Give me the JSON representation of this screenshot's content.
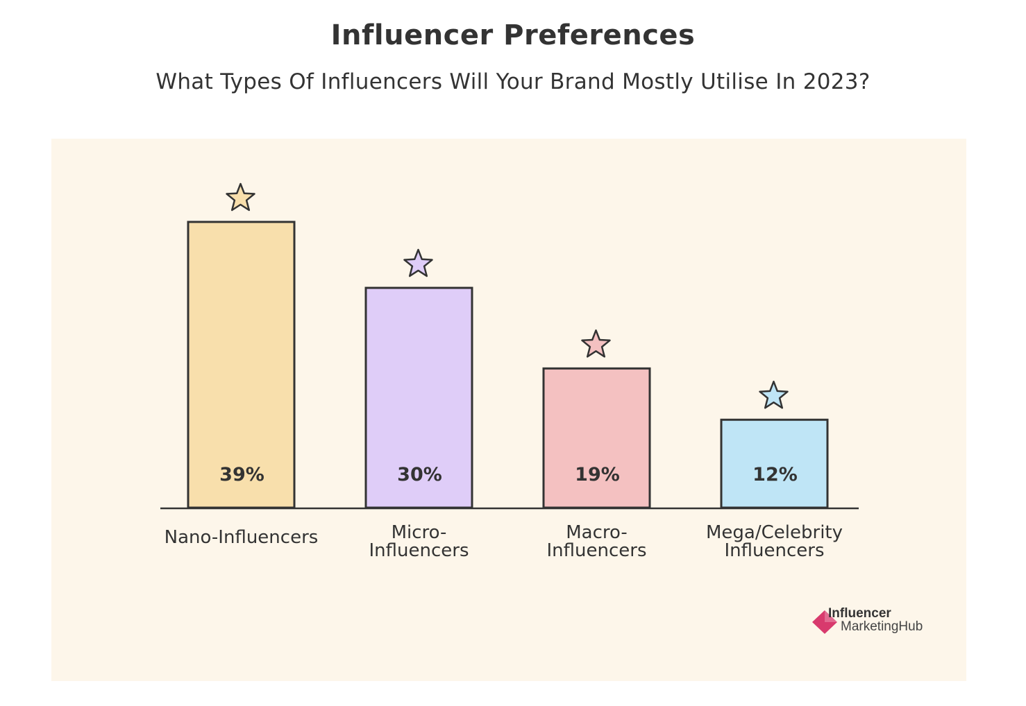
{
  "header": {
    "title": "Influencer Preferences",
    "subtitle": "What Types Of Influencers Will Your Brand Mostly Utilise In 2023?"
  },
  "chart_data": {
    "type": "bar",
    "title": "Influencer Preferences",
    "subtitle": "What Types Of Influencers Will Your Brand Mostly Utilise In 2023?",
    "categories": [
      [
        "Nano-Influencers"
      ],
      [
        "Micro-",
        "Influencers"
      ],
      [
        "Macro-",
        "Influencers"
      ],
      [
        "Mega/Celebrity",
        "Influencers"
      ]
    ],
    "values": [
      39,
      30,
      19,
      12
    ],
    "value_labels": [
      "39%",
      "30%",
      "19%",
      "12%"
    ],
    "colors": [
      "#f8dfac",
      "#dfcdf8",
      "#f4c1c1",
      "#bfe5f6"
    ],
    "ylim": [
      0,
      39
    ],
    "grid": false,
    "legend": "none"
  },
  "branding": {
    "logo_line1": "Influencer",
    "logo_line2": "MarketingHub",
    "logo_color": "#d83a6d"
  },
  "colors": {
    "panel_background": "#fdf6ea",
    "outline": "#333333"
  }
}
